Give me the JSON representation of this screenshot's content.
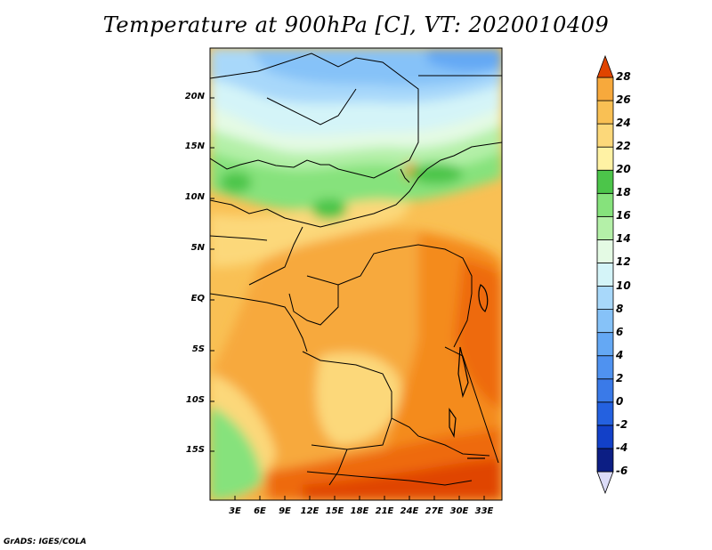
{
  "title": "Temperature at 900hPa [C], VT: 2020010409",
  "footer": "GrADS: IGES/COLA",
  "lat_labels": [
    "20N",
    "15N",
    "10N",
    "5N",
    "EQ",
    "5S",
    "10S",
    "15S"
  ],
  "lon_labels": [
    "3E",
    "6E",
    "9E",
    "12E",
    "15E",
    "18E",
    "21E",
    "24E",
    "27E",
    "30E",
    "33E"
  ],
  "colorbar": {
    "levels": [
      -6,
      -4,
      -2,
      0,
      2,
      4,
      6,
      8,
      10,
      12,
      14,
      16,
      18,
      20,
      22,
      24,
      26,
      28
    ],
    "colors": [
      "#0c1e84",
      "#1240c8",
      "#2461e0",
      "#3a7ae8",
      "#4f92f0",
      "#64a8f4",
      "#86c2f8",
      "#a8d8fa",
      "#d4f4f8",
      "#e4fae4",
      "#b4f0a8",
      "#86e27c",
      "#4cc54a",
      "#fff2a4",
      "#fcd87a",
      "#f9c054",
      "#f7a93c",
      "#f48b1c",
      "#ee6a08",
      "#e04400"
    ]
  },
  "map": {
    "lon_range": [
      0,
      34.5
    ],
    "lat_range": [
      -20,
      25
    ]
  }
}
